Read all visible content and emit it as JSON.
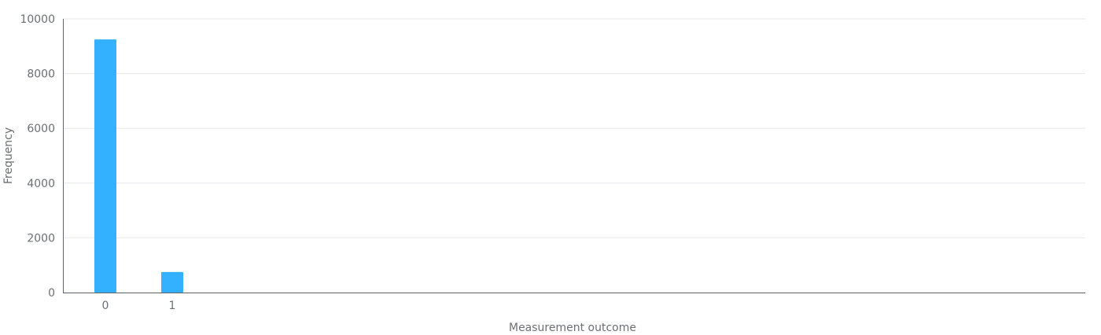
{
  "chart_data": {
    "type": "bar",
    "categories": [
      "0",
      "1"
    ],
    "values": [
      9250,
      750
    ],
    "xlabel": "Measurement outcome",
    "ylabel": "Frequency",
    "ylim": [
      0,
      10000
    ],
    "yticks": [
      0,
      2000,
      4000,
      6000,
      8000,
      10000
    ],
    "grid": true,
    "bar_color": "#33b1ff"
  }
}
